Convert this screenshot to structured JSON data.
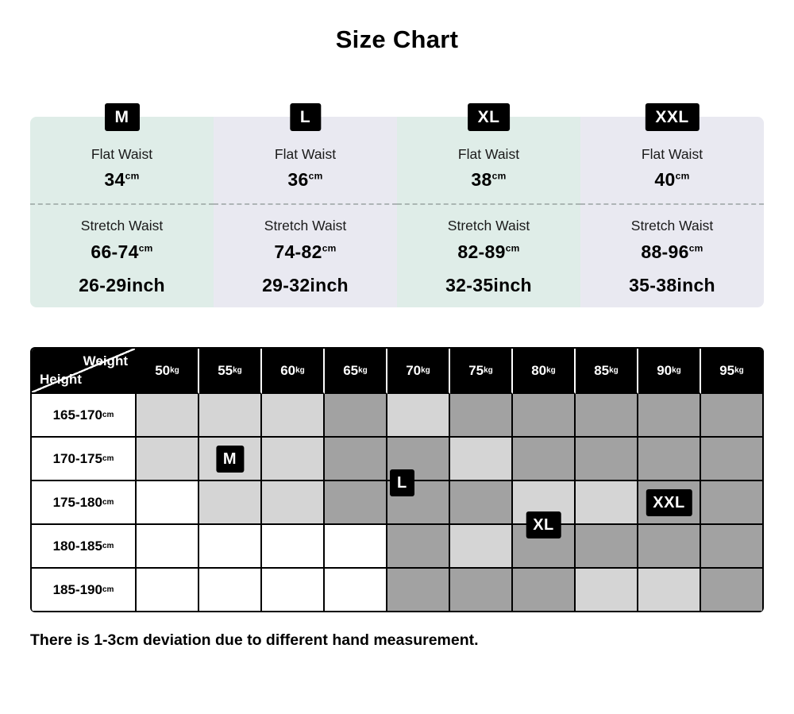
{
  "page": {
    "title": "Size Chart",
    "footnote": "There is 1-3cm deviation due to different hand measurement."
  },
  "size_cards": [
    {
      "size": "M",
      "flat_label": "Flat Waist",
      "flat_value": "34",
      "unit": "cm",
      "stretch_label": "Stretch Waist",
      "stretch_value": "66-74",
      "inch_value": "26-29inch",
      "bg": "#dfede8"
    },
    {
      "size": "L",
      "flat_label": "Flat Waist",
      "flat_value": "36",
      "unit": "cm",
      "stretch_label": "Stretch Waist",
      "stretch_value": "74-82",
      "inch_value": "29-32inch",
      "bg": "#e9e9f1"
    },
    {
      "size": "XL",
      "flat_label": "Flat Waist",
      "flat_value": "38",
      "unit": "cm",
      "stretch_label": "Stretch Waist",
      "stretch_value": "82-89",
      "inch_value": "32-35inch",
      "bg": "#dfede8"
    },
    {
      "size": "XXL",
      "flat_label": "Flat Waist",
      "flat_value": "40",
      "unit": "cm",
      "stretch_label": "Stretch Waist",
      "stretch_value": "88-96",
      "inch_value": "35-38inch",
      "bg": "#e9e9f1"
    }
  ],
  "matrix": {
    "corner": {
      "top_label": "Weight",
      "bottom_label": "Height"
    },
    "weights": [
      {
        "value": "50",
        "unit": "kg"
      },
      {
        "value": "55",
        "unit": "kg"
      },
      {
        "value": "60",
        "unit": "kg"
      },
      {
        "value": "65",
        "unit": "kg"
      },
      {
        "value": "70",
        "unit": "kg"
      },
      {
        "value": "75",
        "unit": "kg"
      },
      {
        "value": "80",
        "unit": "kg"
      },
      {
        "value": "85",
        "unit": "kg"
      },
      {
        "value": "90",
        "unit": "kg"
      },
      {
        "value": "95",
        "unit": "kg"
      }
    ],
    "rows": [
      {
        "height": "165-170",
        "unit": "cm",
        "cells": [
          "light",
          "light",
          "light",
          "dark",
          "light",
          "dark",
          "dark",
          "dark",
          "dark",
          "dark"
        ]
      },
      {
        "height": "170-175",
        "unit": "cm",
        "cells": [
          "light",
          "light",
          "light",
          "dark",
          "dark",
          "light",
          "dark",
          "dark",
          "dark",
          "dark"
        ]
      },
      {
        "height": "175-180",
        "unit": "cm",
        "cells": [
          "white",
          "light",
          "light",
          "dark",
          "dark",
          "dark",
          "light",
          "light",
          "dark",
          "dark"
        ]
      },
      {
        "height": "180-185",
        "unit": "cm",
        "cells": [
          "white",
          "white",
          "white",
          "white",
          "dark",
          "light",
          "dark",
          "dark",
          "dark",
          "dark"
        ]
      },
      {
        "height": "185-190",
        "unit": "cm",
        "cells": [
          "white",
          "white",
          "white",
          "white",
          "dark",
          "dark",
          "dark",
          "light",
          "light",
          "dark"
        ]
      }
    ],
    "badges": [
      {
        "label": "M",
        "row": 1,
        "col": 1,
        "pos": "center"
      },
      {
        "label": "L",
        "row": 2,
        "col": 4,
        "pos": "top-left"
      },
      {
        "label": "XL",
        "row": 3,
        "col": 6,
        "pos": "top-center"
      },
      {
        "label": "XXL",
        "row": 2,
        "col": 8,
        "pos": "center"
      }
    ],
    "colors": {
      "light": "#d5d5d5",
      "dark": "#a2a2a2",
      "white": "#ffffff"
    }
  }
}
